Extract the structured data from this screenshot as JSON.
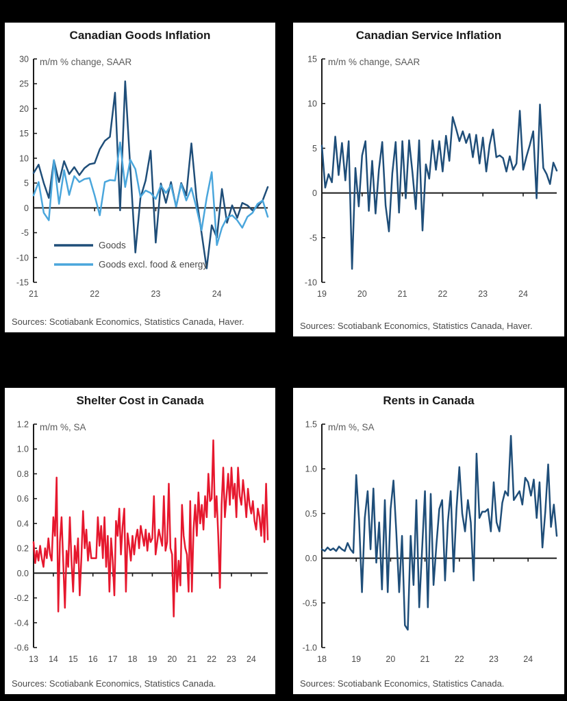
{
  "page": {
    "background": "#000000",
    "panel_background": "#ffffff",
    "axis_color": "#1a1a1a"
  },
  "chart_data": [
    {
      "type": "line",
      "title": "Canadian Goods Inflation",
      "subtitle": "m/m % change, SAAR",
      "sources": "Sources: Scotiabank Economics, Statistics Canada, Haver.",
      "x_frequency": "monthly",
      "x_start": "2021-01",
      "x_tick_labels": [
        "21",
        "22",
        "23",
        "24"
      ],
      "x_months_per_tick": 12,
      "ylim": [
        -15,
        30
      ],
      "ytick_step": 5,
      "y_decimals": 0,
      "grid": false,
      "legend_position": "lower-left",
      "show_legend": true,
      "series": [
        {
          "name": "Goods",
          "color": "#1f4e79",
          "values": [
            7.0,
            8.7,
            5.0,
            2.0,
            9.6,
            5.2,
            9.4,
            6.8,
            8.2,
            6.6,
            8.0,
            8.8,
            9.0,
            11.8,
            13.5,
            14.3,
            23.2,
            -0.5,
            25.5,
            8.0,
            -9.0,
            2.0,
            5.5,
            11.5,
            -7.0,
            4.9,
            1.0,
            5.2,
            0.2,
            5.0,
            2.5,
            13.0,
            2.0,
            -5.0,
            -12.2,
            -3.5,
            -6.0,
            3.8,
            -3.0,
            0.5,
            -2.0,
            1.0,
            0.5,
            -0.5,
            0.3,
            1.5,
            4.2
          ]
        },
        {
          "name": "Goods excl. food & energy",
          "color": "#4aa6dc",
          "values": [
            2.5,
            5.2,
            -1.0,
            -2.5,
            9.6,
            0.8,
            7.6,
            2.6,
            6.4,
            5.2,
            5.8,
            6.0,
            2.5,
            -1.5,
            5.2,
            5.6,
            5.5,
            13.2,
            4.2,
            9.7,
            7.8,
            2.2,
            3.5,
            3.0,
            1.8,
            4.5,
            3.0,
            4.6,
            0.3,
            4.8,
            1.5,
            4.0,
            0.0,
            -4.5,
            2.0,
            7.2,
            -7.5,
            -4.0,
            -2.0,
            -1.5,
            -2.5,
            -4.0,
            -1.8,
            -1.0,
            0.8,
            1.5,
            -1.8
          ]
        }
      ]
    },
    {
      "type": "line",
      "title": "Canadian Service Inflation",
      "subtitle": "m/m % change, SAAR",
      "sources": "Sources: Scotiabank Economics, Statistics Canada, Haver.",
      "x_frequency": "monthly",
      "x_start": "2019-01",
      "x_tick_labels": [
        "19",
        "20",
        "21",
        "22",
        "23",
        "24"
      ],
      "x_months_per_tick": 12,
      "ylim": [
        -10,
        15
      ],
      "ytick_step": 5,
      "y_decimals": 0,
      "grid": false,
      "show_legend": false,
      "series": [
        {
          "name": "Canadian Service Inflation",
          "color": "#1f4e79",
          "values": [
            5.3,
            0.6,
            2.1,
            1.2,
            6.3,
            2.0,
            5.6,
            1.4,
            5.8,
            -8.5,
            2.8,
            -1.5,
            4.2,
            5.8,
            -2.0,
            3.6,
            -2.3,
            2.6,
            5.7,
            -1.4,
            -4.3,
            2.2,
            5.7,
            -2.2,
            5.8,
            -0.6,
            5.9,
            2.3,
            -1.8,
            5.9,
            -4.2,
            3.2,
            1.6,
            5.9,
            2.6,
            5.8,
            2.4,
            6.4,
            3.6,
            8.5,
            7.2,
            5.8,
            6.9,
            5.6,
            6.6,
            4.0,
            6.5,
            3.3,
            6.2,
            2.4,
            5.4,
            7.1,
            4.0,
            4.2,
            3.9,
            2.4,
            4.1,
            2.6,
            3.3,
            9.2,
            2.6,
            4.1,
            5.4,
            6.9,
            -0.6,
            9.9,
            2.8,
            2.1,
            1.0,
            3.4,
            2.5
          ]
        }
      ]
    },
    {
      "type": "line",
      "title": "Shelter Cost in Canada",
      "subtitle": "m/m %, SA",
      "sources": "Sources: Scotiabank Economics, Statistics Canada.",
      "x_frequency": "monthly",
      "x_start": "2013-01",
      "x_tick_labels": [
        "13",
        "14",
        "15",
        "16",
        "17",
        "18",
        "19",
        "20",
        "21",
        "22",
        "23",
        "24"
      ],
      "x_months_per_tick": 12,
      "ylim": [
        -0.6,
        1.2
      ],
      "ytick_step": 0.2,
      "y_decimals": 1,
      "grid": false,
      "show_legend": false,
      "series": [
        {
          "name": "Shelter Cost in Canada",
          "color": "#e6182e",
          "values": [
            0.25,
            0.08,
            0.18,
            0.1,
            0.22,
            0.12,
            0.05,
            0.2,
            0.12,
            0.28,
            0.15,
            0.1,
            0.45,
            0.3,
            0.77,
            -0.31,
            0.25,
            0.45,
            0.08,
            -0.28,
            0.18,
            0.05,
            0.45,
            0.1,
            -0.15,
            0.22,
            0.08,
            0.28,
            -0.18,
            0.12,
            0.5,
            0.2,
            0.35,
            0.1,
            0.25,
            0.12,
            0.12,
            0.12,
            0.12,
            0.45,
            0.22,
            0.38,
            0.12,
            0.45,
            0.05,
            0.3,
            -0.15,
            0.28,
            0.1,
            -0.18,
            0.42,
            0.3,
            0.52,
            0.15,
            0.38,
            0.52,
            -0.15,
            0.32,
            0.22,
            0.1,
            0.3,
            0.15,
            0.28,
            0.35,
            0.2,
            0.38,
            0.3,
            0.22,
            0.35,
            0.18,
            0.32,
            0.25,
            0.28,
            0.62,
            0.15,
            0.25,
            0.35,
            0.28,
            0.22,
            0.62,
            0.18,
            0.25,
            0.72,
            0.2,
            0.15,
            -0.35,
            0.28,
            -0.15,
            0.1,
            -0.1,
            0.55,
            0.3,
            0.2,
            0.15,
            -0.15,
            0.58,
            -0.15,
            0.35,
            0.55,
            0.3,
            0.65,
            0.4,
            0.55,
            0.35,
            0.62,
            0.45,
            0.8,
            0.58,
            0.6,
            1.07,
            0.45,
            0.62,
            0.3,
            -0.12,
            0.55,
            0.85,
            0.45,
            0.62,
            0.8,
            0.55,
            0.85,
            0.6,
            0.72,
            0.45,
            0.85,
            0.62,
            0.55,
            0.75,
            0.62,
            0.45,
            0.68,
            0.55,
            0.48,
            0.58,
            0.42,
            0.35,
            0.52,
            0.45,
            0.3,
            0.55,
            0.25,
            0.72,
            0.27
          ]
        }
      ]
    },
    {
      "type": "line",
      "title": "Rents in Canada",
      "subtitle": "m/m %, SA",
      "sources": "Sources: Scotiabank Economics, Statistics Canada.",
      "x_frequency": "monthly",
      "x_start": "2018-01",
      "x_tick_labels": [
        "18",
        "19",
        "20",
        "21",
        "22",
        "23",
        "24"
      ],
      "x_months_per_tick": 12,
      "ylim": [
        -1.0,
        1.5
      ],
      "ytick_step": 0.5,
      "y_decimals": 1,
      "grid": false,
      "show_legend": false,
      "series": [
        {
          "name": "Rents in Canada",
          "color": "#1f4e79",
          "values": [
            0.1,
            0.08,
            0.12,
            0.09,
            0.11,
            0.08,
            0.13,
            0.1,
            0.08,
            0.17,
            0.1,
            0.06,
            0.93,
            0.42,
            -0.38,
            0.45,
            0.75,
            0.1,
            0.78,
            -0.05,
            0.4,
            -0.35,
            0.65,
            -0.38,
            0.55,
            0.87,
            0.28,
            -0.38,
            0.25,
            -0.75,
            -0.8,
            0.25,
            -0.3,
            0.65,
            -0.55,
            0.1,
            0.75,
            -0.55,
            0.72,
            -0.3,
            0.15,
            0.55,
            0.65,
            -0.25,
            0.4,
            0.75,
            -0.15,
            0.55,
            1.02,
            0.5,
            0.3,
            0.65,
            0.4,
            -0.25,
            1.17,
            0.45,
            0.52,
            0.52,
            0.55,
            0.3,
            0.85,
            0.4,
            0.3,
            0.62,
            0.75,
            0.7,
            1.37,
            0.65,
            0.7,
            0.75,
            0.6,
            0.9,
            0.85,
            0.7,
            0.88,
            0.45,
            0.85,
            0.12,
            0.52,
            1.05,
            0.35,
            0.6,
            0.25
          ]
        }
      ]
    }
  ]
}
